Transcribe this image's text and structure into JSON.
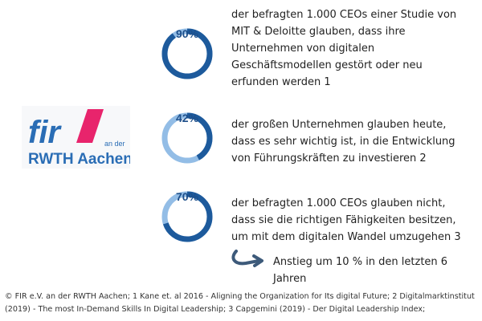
{
  "colors": {
    "dark": "#1d5a9c",
    "light": "#93bde6",
    "brand_pink": "#e8246c",
    "brand_blue": "#2a6db5"
  },
  "logo": {
    "text": "fir",
    "sub": "an der",
    "name": "RWTH Aachen"
  },
  "stats": [
    {
      "percent": "90%",
      "value": 90,
      "text": "der befragten 1.000 CEOs einer Studie von MIT & Deloitte glauben, dass ihre Unternehmen von digitalen Geschäftsmodellen gestört oder neu erfunden werden 1"
    },
    {
      "percent": "42%",
      "value": 42,
      "text": "der großen Unternehmen glauben heute, dass es sehr wichtig ist, in die Entwicklung von Führungskräften zu investieren 2"
    },
    {
      "percent": "70%",
      "value": 70,
      "text": "der befragten 1.000 CEOs glauben nicht, dass sie die richtigen Fähigkeiten besitzen, um mit dem digitalen Wandel umzugehen 3"
    }
  ],
  "note": {
    "icon": "curved-arrow-icon",
    "text": "Anstieg um 10 % in den letzten 6 Jahren"
  },
  "footnote": "© FIR e.V.  an der RWTH Aachen; 1 Kane et. al 2016 - Aligning the Organization for Its digital Future; 2 Digitalmarktinstitut (2019) - The most In-Demand Skills In Digital Leadership; 3 Capgemini (2019) - Der Digital Leadership Index;"
}
